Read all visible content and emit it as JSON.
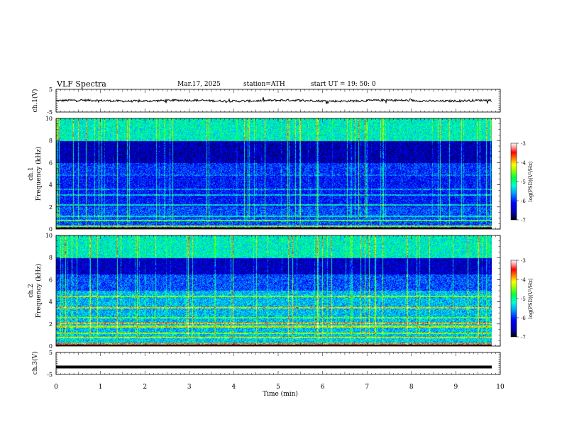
{
  "header": {
    "title": "VLF Spectra",
    "date": "Mar.17, 2025",
    "station": "station=ATH",
    "start": "start  UT  =   19: 50: 0"
  },
  "chart_data": [
    {
      "type": "line",
      "panel": "ch1-waveform",
      "ylabel": "ch.1(V)",
      "ylim": [
        -5,
        5
      ],
      "yticks": [
        "5",
        "-5"
      ],
      "xlim": [
        0,
        10
      ],
      "description_values": "noisy trace centered near 0 V, amplitude about ±1 V"
    },
    {
      "type": "heatmap",
      "panel": "ch1-spectrogram",
      "ylabel": "ch.1\nFrequency  (kHz)",
      "ylabel_line1": "ch.1",
      "ylabel_line2": "Frequency  (kHz)",
      "ylim": [
        0,
        10
      ],
      "yticks": [
        "0",
        "2",
        "4",
        "6",
        "8",
        "10"
      ],
      "xlim": [
        0,
        10
      ],
      "colorbar": {
        "label": "log(PSD)(V²/Hz)",
        "ticks": [
          "-3",
          "-4",
          "-5",
          "-6",
          "-7"
        ],
        "range": [
          -7,
          -3
        ]
      }
    },
    {
      "type": "heatmap",
      "panel": "ch2-spectrogram",
      "ylabel_line1": "ch.2",
      "ylabel_line2": "Frequency  (kHz)",
      "ylim": [
        0,
        10
      ],
      "yticks": [
        "0",
        "2",
        "4",
        "6",
        "8",
        "10"
      ],
      "xlim": [
        0,
        10
      ],
      "colorbar": {
        "label": "log(PSD)(V²/Hz)",
        "ticks": [
          "-3",
          "-4",
          "-5",
          "-6",
          "-7"
        ],
        "range": [
          -7,
          -3
        ]
      }
    },
    {
      "type": "line",
      "panel": "ch3-waveform",
      "ylabel": "ch.3(V)",
      "ylim": [
        -5,
        5
      ],
      "yticks": [
        "5",
        "-5"
      ],
      "xlim": [
        0,
        10
      ],
      "xlabel": "Time  (min)",
      "xticks": [
        "0",
        "1",
        "2",
        "3",
        "4",
        "5",
        "6",
        "7",
        "8",
        "9",
        "10"
      ],
      "flat_value": -1.6
    }
  ]
}
